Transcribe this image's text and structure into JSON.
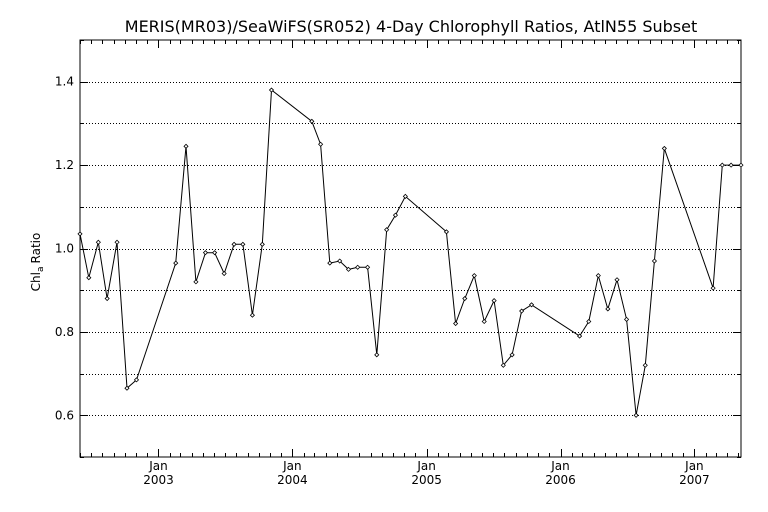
{
  "chart_data": {
    "type": "line",
    "title": "MERIS(MR03)/SeaWiFS(SR052) 4-Day Chlorophyll Ratios, AtlN55 Subset",
    "ylabel": {
      "main": "Chl",
      "sub": "a",
      "suffix": "Ratio"
    },
    "xlabel": "",
    "ylim": [
      0.5,
      1.5
    ],
    "xlim": [
      "2002-06-01",
      "2007-05-08"
    ],
    "grid": true,
    "yticks": [
      0.6,
      0.8,
      1.0,
      1.2,
      1.4
    ],
    "ytick_labels": [
      "0.6",
      "0.8",
      "1.0",
      "1.2",
      "1.4"
    ],
    "xticks": [
      {
        "date": "2003-01-01",
        "month": "Jan",
        "year": "2003"
      },
      {
        "date": "2004-01-01",
        "month": "Jan",
        "year": "2004"
      },
      {
        "date": "2005-01-01",
        "month": "Jan",
        "year": "2005"
      },
      {
        "date": "2006-01-01",
        "month": "Jan",
        "year": "2006"
      },
      {
        "date": "2007-01-01",
        "month": "Jan",
        "year": "2007"
      }
    ],
    "series": [
      {
        "marker": "diamond",
        "x": [
          "2002-06-01",
          "2002-06-25",
          "2002-07-21",
          "2002-08-14",
          "2002-09-10",
          "2002-10-07",
          "2002-11-02",
          "2003-02-17",
          "2003-03-17",
          "2003-04-13",
          "2003-05-09",
          "2003-06-03",
          "2003-06-29",
          "2003-07-26",
          "2003-08-19",
          "2003-09-14",
          "2003-10-11",
          "2003-11-05",
          "2004-02-23",
          "2004-03-18",
          "2004-04-12",
          "2004-05-09",
          "2004-06-02",
          "2004-06-27",
          "2004-07-24",
          "2004-08-18",
          "2004-09-14",
          "2004-10-08",
          "2004-11-04",
          "2005-02-24",
          "2005-03-21",
          "2005-04-15",
          "2005-05-11",
          "2005-06-07",
          "2005-07-04",
          "2005-07-29",
          "2005-08-22",
          "2005-09-17",
          "2005-10-14",
          "2006-02-22",
          "2006-03-19",
          "2006-04-14",
          "2006-05-10",
          "2006-06-04",
          "2006-06-30",
          "2006-07-26",
          "2006-08-20",
          "2006-09-14",
          "2006-10-11",
          "2007-02-21",
          "2007-03-18",
          "2007-04-11",
          "2007-05-08"
        ],
        "y": [
          1.035,
          0.93,
          1.015,
          0.88,
          1.015,
          0.665,
          0.685,
          0.965,
          1.245,
          0.92,
          0.99,
          0.99,
          0.94,
          1.01,
          1.01,
          0.84,
          1.01,
          1.38,
          1.305,
          1.25,
          0.965,
          0.97,
          0.95,
          0.955,
          0.955,
          0.745,
          1.045,
          1.08,
          1.125,
          1.04,
          0.82,
          0.88,
          0.935,
          0.825,
          0.875,
          0.72,
          0.745,
          0.85,
          0.865,
          0.79,
          0.825,
          0.935,
          0.855,
          0.925,
          0.83,
          0.6,
          0.72,
          0.97,
          1.24,
          0.905,
          1.2,
          1.2,
          1.2
        ]
      }
    ]
  }
}
